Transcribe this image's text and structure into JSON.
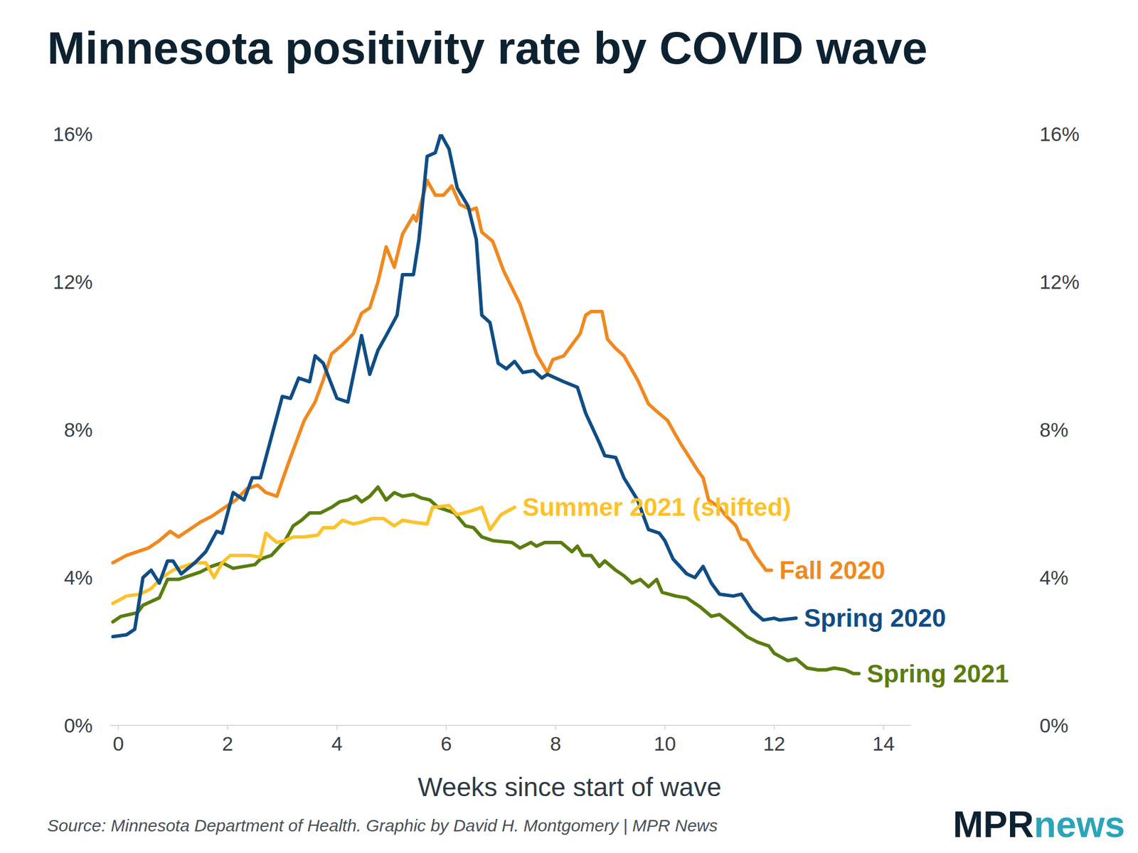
{
  "chart_data": {
    "type": "line",
    "title": "Minnesota positivity rate by COVID wave",
    "x_label": "Weeks since start of wave",
    "source": "Source: Minnesota Department of Health. Graphic by David H. Montgomery | MPR News",
    "logo": [
      "MPR",
      "news"
    ],
    "xlim": [
      -0.15,
      14.5
    ],
    "xticks": [
      0,
      2,
      4,
      6,
      8,
      10,
      12,
      14
    ],
    "ylim": [
      0,
      16
    ],
    "yticks": [
      {
        "value": 0,
        "label": "0%"
      },
      {
        "value": 4,
        "label": "4%"
      },
      {
        "value": 8,
        "label": "8%"
      },
      {
        "value": 12,
        "label": "12%"
      },
      {
        "value": 16,
        "label": "16%"
      }
    ],
    "y2lim": [
      0,
      16
    ],
    "y2ticks": [
      {
        "value": 0,
        "label": "0%"
      },
      {
        "value": 4,
        "label": "4%"
      },
      {
        "value": 8,
        "label": "8%"
      },
      {
        "value": 12,
        "label": "12%"
      },
      {
        "value": 16,
        "label": "16%"
      }
    ],
    "grid": false,
    "series": [
      {
        "name": "Spring 2021",
        "color": "#5a7d0f",
        "x": [
          -0.1,
          0.05,
          0.2,
          0.35,
          0.45,
          0.6,
          0.75,
          0.9,
          1.1,
          1.3,
          1.5,
          1.7,
          1.9,
          2.1,
          2.3,
          2.5,
          2.6,
          2.8,
          3.05,
          3.2,
          3.35,
          3.5,
          3.7,
          3.9,
          4.05,
          4.2,
          4.35,
          4.45,
          4.6,
          4.75,
          4.9,
          5.05,
          5.2,
          5.4,
          5.55,
          5.7,
          5.85,
          6.15,
          6.35,
          6.5,
          6.65,
          6.85,
          7.2,
          7.35,
          7.55,
          7.65,
          7.8,
          8.1,
          8.3,
          8.4,
          8.5,
          8.65,
          8.8,
          8.9,
          9.1,
          9.25,
          9.4,
          9.55,
          9.7,
          9.85,
          9.95,
          10.2,
          10.4,
          10.65,
          10.85,
          11.0,
          11.3,
          11.5,
          11.7,
          11.9,
          12.0,
          12.25,
          12.4,
          12.6,
          12.8,
          12.95,
          13.1,
          13.3,
          13.45,
          13.55
        ],
        "values": [
          2.8,
          2.95,
          3.0,
          3.05,
          3.25,
          3.35,
          3.45,
          3.95,
          3.95,
          4.05,
          4.15,
          4.3,
          4.4,
          4.25,
          4.3,
          4.35,
          4.5,
          4.6,
          5.0,
          5.4,
          5.55,
          5.75,
          5.75,
          5.9,
          6.05,
          6.1,
          6.2,
          6.05,
          6.2,
          6.45,
          6.1,
          6.3,
          6.2,
          6.25,
          6.15,
          6.1,
          5.9,
          5.75,
          5.4,
          5.35,
          5.1,
          5.0,
          4.95,
          4.8,
          4.95,
          4.85,
          4.95,
          4.95,
          4.7,
          4.85,
          4.6,
          4.6,
          4.3,
          4.45,
          4.2,
          4.05,
          3.85,
          3.95,
          3.75,
          3.95,
          3.6,
          3.5,
          3.45,
          3.2,
          2.95,
          3.0,
          2.65,
          2.4,
          2.25,
          2.15,
          1.95,
          1.75,
          1.8,
          1.55,
          1.5,
          1.5,
          1.55,
          1.5,
          1.4,
          1.4
        ]
      },
      {
        "name": "Summer 2021 (shifted)",
        "color": "#fcc22a",
        "x": [
          -0.1,
          0.15,
          0.4,
          0.6,
          0.8,
          1.0,
          1.2,
          1.4,
          1.6,
          1.75,
          1.9,
          2.05,
          2.2,
          2.4,
          2.6,
          2.7,
          2.9,
          3.05,
          3.2,
          3.4,
          3.65,
          3.75,
          3.95,
          4.1,
          4.3,
          4.45,
          4.65,
          4.85,
          5.05,
          5.2,
          5.4,
          5.65,
          5.75,
          6.05,
          6.2,
          6.45,
          6.65,
          6.8,
          7.0,
          7.25
        ],
        "values": [
          3.3,
          3.5,
          3.55,
          3.7,
          4.0,
          4.2,
          4.3,
          4.4,
          4.4,
          4.0,
          4.4,
          4.6,
          4.6,
          4.6,
          4.55,
          5.2,
          4.95,
          5.0,
          5.1,
          5.1,
          5.15,
          5.35,
          5.35,
          5.55,
          5.45,
          5.5,
          5.6,
          5.6,
          5.4,
          5.55,
          5.5,
          5.45,
          5.9,
          5.95,
          5.7,
          5.8,
          5.9,
          5.3,
          5.7,
          5.9
        ]
      },
      {
        "name": "Fall 2020",
        "color": "#f0891f",
        "x": [
          -0.1,
          0.15,
          0.35,
          0.55,
          0.75,
          0.95,
          1.1,
          1.3,
          1.5,
          1.7,
          1.95,
          2.15,
          2.35,
          2.55,
          2.7,
          2.9,
          3.1,
          3.4,
          3.6,
          3.75,
          3.9,
          4.1,
          4.3,
          4.45,
          4.6,
          4.75,
          4.9,
          5.05,
          5.2,
          5.4,
          5.45,
          5.65,
          5.8,
          5.95,
          6.1,
          6.25,
          6.45,
          6.55,
          6.65,
          6.85,
          7.05,
          7.35,
          7.65,
          7.85,
          7.95,
          8.15,
          8.35,
          8.45,
          8.55,
          8.65,
          8.85,
          8.95,
          9.1,
          9.25,
          9.5,
          9.7,
          9.85,
          10.05,
          10.2,
          10.3,
          10.6,
          10.7,
          10.8,
          11.0,
          11.1,
          11.3,
          11.4,
          11.5,
          11.65,
          11.85,
          11.95
        ],
        "values": [
          4.4,
          4.6,
          4.7,
          4.8,
          5.0,
          5.25,
          5.1,
          5.3,
          5.5,
          5.65,
          5.9,
          6.1,
          6.4,
          6.5,
          6.3,
          6.2,
          7.05,
          8.25,
          8.75,
          9.35,
          10.05,
          10.3,
          10.6,
          11.15,
          11.3,
          12.0,
          12.95,
          12.4,
          13.3,
          13.8,
          13.65,
          14.75,
          14.35,
          14.35,
          14.6,
          14.1,
          13.95,
          14.0,
          13.35,
          13.1,
          12.3,
          11.4,
          10.05,
          9.55,
          9.9,
          10.0,
          10.4,
          10.6,
          11.1,
          11.2,
          11.2,
          10.45,
          10.2,
          10.0,
          9.35,
          8.7,
          8.5,
          8.25,
          7.85,
          7.6,
          6.9,
          6.7,
          6.1,
          5.9,
          5.7,
          5.4,
          5.05,
          5.0,
          4.6,
          4.2,
          4.2
        ]
      },
      {
        "name": "Spring 2020",
        "color": "#0f4d85",
        "x": [
          -0.1,
          0.15,
          0.3,
          0.45,
          0.6,
          0.75,
          0.9,
          1.0,
          1.15,
          1.4,
          1.6,
          1.8,
          1.9,
          2.1,
          2.3,
          2.45,
          2.6,
          2.9,
          3.0,
          3.15,
          3.3,
          3.5,
          3.6,
          3.75,
          4.0,
          4.2,
          4.45,
          4.6,
          4.75,
          4.9,
          5.1,
          5.2,
          5.4,
          5.5,
          5.65,
          5.8,
          5.9,
          6.05,
          6.2,
          6.4,
          6.55,
          6.65,
          6.8,
          6.95,
          7.1,
          7.25,
          7.4,
          7.6,
          7.75,
          7.85,
          8.15,
          8.4,
          8.55,
          8.8,
          8.9,
          9.1,
          9.25,
          9.5,
          9.7,
          9.9,
          10.0,
          10.15,
          10.4,
          10.55,
          10.7,
          10.85,
          11.0,
          11.25,
          11.4,
          11.6,
          11.8,
          12.0,
          12.1,
          12.4
        ],
        "values": [
          2.4,
          2.45,
          2.6,
          4.0,
          4.2,
          3.85,
          4.45,
          4.45,
          4.1,
          4.4,
          4.7,
          5.25,
          5.2,
          6.3,
          6.1,
          6.7,
          6.7,
          8.35,
          8.9,
          8.85,
          9.4,
          9.3,
          10.0,
          9.8,
          8.85,
          8.75,
          10.55,
          9.5,
          10.15,
          10.55,
          11.1,
          12.2,
          12.2,
          13.15,
          15.4,
          15.5,
          16.0,
          15.6,
          14.55,
          14.05,
          13.15,
          11.1,
          10.9,
          9.8,
          9.65,
          9.85,
          9.55,
          9.6,
          9.4,
          9.5,
          9.3,
          9.15,
          8.45,
          7.65,
          7.3,
          7.25,
          6.7,
          6.1,
          5.3,
          5.2,
          5.0,
          4.5,
          4.1,
          4.0,
          4.3,
          3.85,
          3.55,
          3.5,
          3.55,
          3.1,
          2.85,
          2.9,
          2.85,
          2.9
        ]
      }
    ]
  }
}
